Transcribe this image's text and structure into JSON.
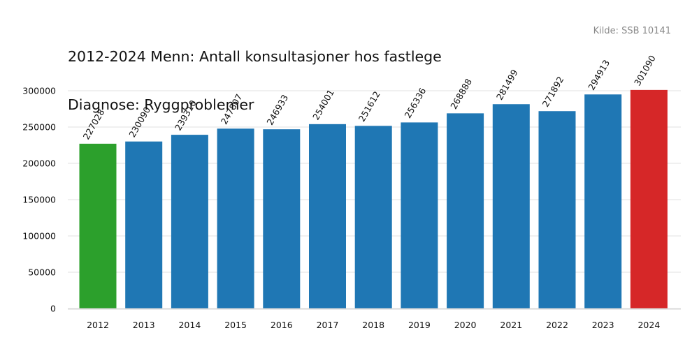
{
  "chart_data": {
    "type": "bar",
    "title_line1": "2012-2024 Menn: Antall konsultasjoner hos fastlege",
    "title_line2": "Diagnose: Ryggproblemer",
    "source": "Kilde: SSB 10141",
    "categories": [
      "2012",
      "2013",
      "2014",
      "2015",
      "2016",
      "2017",
      "2018",
      "2019",
      "2020",
      "2021",
      "2022",
      "2023",
      "2024"
    ],
    "values": [
      227028,
      230090,
      239310,
      247807,
      246933,
      254001,
      251612,
      256336,
      268888,
      281499,
      271892,
      294913,
      301090
    ],
    "value_labels": [
      "227028",
      "230090",
      "239310",
      "247807",
      "246933",
      "254001",
      "251612",
      "256336",
      "268888",
      "281499",
      "271892",
      "294913",
      "301090"
    ],
    "colors": {
      "default": "#1f77b4",
      "first": "#2ca02c",
      "last": "#d62728",
      "grid": "#e6e6e6",
      "axis": "#d9d9d9"
    },
    "yticks": [
      0,
      50000,
      100000,
      150000,
      200000,
      250000,
      300000
    ],
    "ytick_labels": [
      "0",
      "50000",
      "100000",
      "150000",
      "200000",
      "250000",
      "300000"
    ],
    "ylim": [
      0,
      300000
    ],
    "grid": true,
    "legend": false
  }
}
